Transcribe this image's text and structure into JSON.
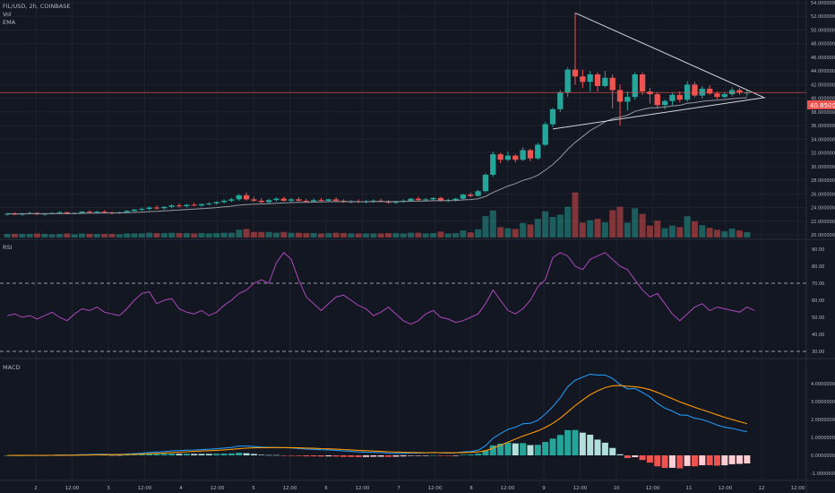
{
  "header": {
    "symbol": "FIL/USD, 2h, COINBASE",
    "vol_label": "Vol",
    "ema_label": "EMA"
  },
  "rsi": {
    "label": "RSI",
    "ticks": [
      "90.00",
      "80.00",
      "70.00",
      "60.00",
      "50.00",
      "40.00",
      "30.00"
    ],
    "band_upper": 70,
    "band_lower": 30,
    "values": [
      51,
      52,
      50,
      51,
      49,
      51,
      53,
      50,
      48,
      52,
      55,
      54,
      56,
      53,
      52,
      51,
      55,
      60,
      64,
      65,
      58,
      60,
      61,
      55,
      53,
      52,
      54,
      51,
      53,
      57,
      60,
      64,
      66,
      70,
      72,
      70,
      82,
      88,
      84,
      72,
      62,
      58,
      54,
      58,
      62,
      63,
      60,
      57,
      55,
      51,
      53,
      56,
      52,
      48,
      46,
      48,
      52,
      54,
      50,
      49,
      47,
      48,
      50,
      52,
      58,
      66,
      60,
      54,
      52,
      55,
      60,
      68,
      72,
      85,
      88,
      86,
      80,
      78,
      84,
      86,
      88,
      84,
      80,
      78,
      72,
      66,
      62,
      64,
      58,
      52,
      48,
      52,
      56,
      58,
      54,
      56,
      55,
      54,
      53,
      56,
      54
    ]
  },
  "macd": {
    "label": "MACD",
    "ticks": [
      "4.0000000",
      "3.0000000",
      "2.0000000",
      "1.0000000",
      "0.0000000",
      "-1.0000000"
    ],
    "hist_colors": {
      "pos_strong": "#26a69a",
      "pos_weak": "#b2dfdb",
      "neg_strong": "#ef5350",
      "neg_weak": "#ffcdd2"
    }
  },
  "price_axis": {
    "ticks": [
      "54.000000",
      "52.000000",
      "50.000000",
      "48.000000",
      "46.000000",
      "44.000000",
      "42.000000",
      "40.000000",
      "38.000000",
      "36.000000",
      "34.000000",
      "32.000000",
      "30.000000",
      "28.000000",
      "26.000000",
      "24.000000",
      "22.000000",
      "20.000000"
    ],
    "last_price_label": "40.8500"
  },
  "time_axis": {
    "labels": [
      "2",
      "12:00",
      "3",
      "12:00",
      "4",
      "12:00",
      "5",
      "12:00",
      "6",
      "12:00",
      "7",
      "12:00",
      "8",
      "12:00",
      "9",
      "12:00",
      "10",
      "12:00",
      "11",
      "12:00",
      "12",
      "12:00"
    ]
  },
  "colors": {
    "bg": "#131722",
    "up": "#26a69a",
    "down": "#ef5350",
    "rsi": "#ab47bc",
    "macd": "#2196f3",
    "signal": "#ff9800",
    "ema": "#9598a1",
    "triangle": "#d1d4dc"
  },
  "chart_data": [
    {
      "type": "candlestick",
      "title": "FIL/USD, 2h, COINBASE",
      "ylim": [
        20,
        54
      ],
      "x_labels": [
        "2",
        "12:00",
        "3",
        "12:00",
        "4",
        "12:00",
        "5",
        "12:00",
        "6",
        "12:00",
        "7",
        "12:00",
        "8",
        "12:00",
        "9",
        "12:00",
        "10",
        "12:00",
        "11",
        "12:00",
        "12",
        "12:00"
      ],
      "ohlc": [
        [
          23.0,
          23.2,
          22.8,
          23.1
        ],
        [
          23.1,
          23.3,
          22.9,
          23.0
        ],
        [
          23.0,
          23.2,
          22.8,
          23.1
        ],
        [
          23.1,
          23.4,
          23.0,
          23.2
        ],
        [
          23.2,
          23.3,
          22.9,
          23.0
        ],
        [
          23.0,
          23.2,
          22.8,
          23.1
        ],
        [
          23.1,
          23.3,
          23.0,
          23.2
        ],
        [
          23.2,
          23.5,
          23.1,
          23.3
        ],
        [
          23.3,
          23.4,
          23.0,
          23.1
        ],
        [
          23.1,
          23.3,
          23.0,
          23.2
        ],
        [
          23.2,
          23.5,
          23.1,
          23.4
        ],
        [
          23.4,
          23.6,
          23.2,
          23.3
        ],
        [
          23.3,
          23.5,
          23.1,
          23.4
        ],
        [
          23.4,
          23.6,
          23.2,
          23.3
        ],
        [
          23.3,
          23.4,
          23.0,
          23.2
        ],
        [
          23.2,
          23.4,
          23.1,
          23.3
        ],
        [
          23.3,
          23.6,
          23.2,
          23.5
        ],
        [
          23.5,
          23.8,
          23.4,
          23.7
        ],
        [
          23.7,
          24.0,
          23.5,
          23.8
        ],
        [
          23.8,
          24.2,
          23.6,
          24.0
        ],
        [
          24.0,
          24.3,
          23.7,
          23.9
        ],
        [
          23.9,
          24.2,
          23.7,
          24.1
        ],
        [
          24.1,
          24.5,
          23.9,
          24.3
        ],
        [
          24.3,
          24.6,
          24.0,
          24.2
        ],
        [
          24.2,
          24.5,
          24.0,
          24.4
        ],
        [
          24.4,
          24.7,
          24.2,
          24.3
        ],
        [
          24.3,
          24.6,
          24.1,
          24.5
        ],
        [
          24.5,
          24.8,
          24.3,
          24.6
        ],
        [
          24.6,
          24.9,
          24.4,
          24.8
        ],
        [
          24.8,
          25.2,
          24.6,
          25.0
        ],
        [
          25.0,
          25.4,
          24.8,
          25.2
        ],
        [
          25.2,
          26.0,
          25.0,
          25.8
        ],
        [
          25.8,
          26.2,
          25.0,
          25.2
        ],
        [
          25.2,
          25.6,
          24.8,
          25.0
        ],
        [
          25.0,
          25.4,
          24.6,
          24.8
        ],
        [
          24.8,
          25.3,
          24.6,
          25.1
        ],
        [
          25.1,
          25.5,
          24.9,
          25.3
        ],
        [
          25.3,
          25.6,
          24.9,
          25.0
        ],
        [
          25.0,
          25.4,
          24.8,
          25.2
        ],
        [
          25.2,
          25.5,
          24.9,
          25.0
        ],
        [
          25.0,
          25.3,
          24.7,
          24.9
        ],
        [
          24.9,
          25.3,
          24.8,
          25.1
        ],
        [
          25.1,
          25.4,
          24.9,
          25.0
        ],
        [
          25.0,
          25.3,
          24.8,
          25.2
        ],
        [
          25.2,
          25.5,
          24.9,
          25.0
        ],
        [
          25.0,
          25.2,
          24.7,
          24.8
        ],
        [
          24.8,
          25.1,
          24.6,
          24.9
        ],
        [
          24.9,
          25.2,
          24.7,
          24.8
        ],
        [
          24.8,
          25.1,
          24.6,
          24.9
        ],
        [
          24.9,
          25.2,
          24.7,
          25.0
        ],
        [
          25.0,
          25.3,
          24.8,
          24.9
        ],
        [
          24.9,
          25.1,
          24.6,
          24.7
        ],
        [
          24.7,
          25.0,
          24.5,
          24.9
        ],
        [
          24.9,
          25.2,
          24.7,
          25.0
        ],
        [
          25.0,
          25.4,
          24.9,
          25.3
        ],
        [
          25.3,
          25.6,
          25.0,
          25.1
        ],
        [
          25.1,
          25.4,
          24.9,
          25.2
        ],
        [
          25.2,
          25.5,
          25.0,
          25.4
        ],
        [
          25.4,
          25.6,
          24.9,
          25.0
        ],
        [
          25.0,
          25.3,
          24.8,
          25.1
        ],
        [
          25.1,
          25.4,
          24.9,
          25.3
        ],
        [
          25.3,
          26.0,
          25.2,
          25.9
        ],
        [
          25.9,
          26.2,
          25.5,
          25.7
        ],
        [
          25.7,
          26.6,
          25.6,
          26.4
        ],
        [
          26.4,
          29.0,
          26.2,
          28.8
        ],
        [
          28.8,
          32.2,
          28.5,
          31.8
        ],
        [
          31.8,
          32.0,
          30.5,
          31.0
        ],
        [
          31.0,
          32.2,
          30.8,
          31.6
        ],
        [
          31.6,
          31.8,
          30.6,
          31.0
        ],
        [
          31.0,
          32.8,
          30.8,
          32.4
        ],
        [
          32.4,
          32.6,
          30.8,
          31.2
        ],
        [
          31.2,
          33.5,
          31.0,
          33.2
        ],
        [
          33.2,
          36.5,
          33.0,
          36.2
        ],
        [
          36.2,
          38.6,
          35.8,
          38.4
        ],
        [
          38.4,
          41.2,
          38.0,
          40.8
        ],
        [
          40.8,
          44.5,
          40.2,
          44.2
        ],
        [
          44.2,
          52.5,
          42.0,
          43.2
        ],
        [
          43.2,
          44.2,
          41.5,
          42.4
        ],
        [
          42.4,
          44.0,
          41.0,
          43.5
        ],
        [
          43.5,
          43.8,
          41.0,
          41.8
        ],
        [
          41.8,
          44.0,
          41.6,
          43.0
        ],
        [
          43.0,
          43.5,
          38.5,
          41.2
        ],
        [
          41.2,
          42.0,
          36.0,
          39.5
        ],
        [
          39.5,
          41.0,
          38.2,
          40.2
        ],
        [
          40.2,
          43.8,
          39.8,
          43.5
        ],
        [
          43.5,
          43.8,
          40.5,
          41.0
        ],
        [
          41.0,
          41.5,
          39.2,
          40.6
        ],
        [
          40.6,
          40.9,
          38.5,
          39.0
        ],
        [
          39.0,
          39.8,
          38.4,
          39.6
        ],
        [
          39.6,
          40.8,
          39.0,
          40.5
        ],
        [
          40.5,
          41.0,
          39.4,
          39.8
        ],
        [
          39.8,
          42.5,
          39.5,
          42.0
        ],
        [
          42.0,
          42.4,
          40.2,
          40.4
        ],
        [
          40.4,
          41.8,
          40.0,
          41.4
        ],
        [
          41.4,
          41.9,
          40.5,
          40.7
        ],
        [
          40.7,
          41.0,
          39.9,
          40.2
        ],
        [
          40.2,
          40.8,
          40.0,
          40.6
        ],
        [
          40.6,
          41.6,
          40.3,
          41.2
        ],
        [
          41.2,
          41.5,
          40.5,
          40.8
        ],
        [
          40.8,
          41.2,
          40.3,
          40.85
        ]
      ],
      "series": [
        {
          "name": "EMA",
          "type": "line"
        }
      ]
    },
    {
      "type": "line",
      "title": "RSI",
      "ylim": [
        30,
        90
      ]
    },
    {
      "type": "line+bar",
      "title": "MACD",
      "ylim": [
        -1,
        4
      ],
      "series": [
        {
          "name": "MACD"
        },
        {
          "name": "Signal"
        },
        {
          "name": "Histogram"
        }
      ]
    }
  ]
}
